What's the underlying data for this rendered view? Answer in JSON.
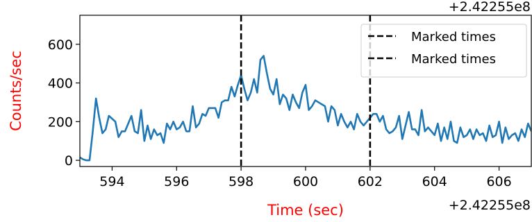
{
  "chart_data": {
    "type": "line",
    "xlabel": "Time (sec)",
    "ylabel": "Counts/sec",
    "x_offset_label": "+2.42255e8",
    "xlim": [
      593,
      607
    ],
    "ylim": [
      -32,
      750
    ],
    "xticks": [
      594,
      596,
      598,
      600,
      602,
      604,
      606
    ],
    "yticks": [
      0,
      200,
      400,
      600
    ],
    "legend": "upper right",
    "x": [
      593.0,
      593.1,
      593.2,
      593.3,
      593.4,
      593.5,
      593.6,
      593.7,
      593.8,
      593.9,
      594.0,
      594.1,
      594.2,
      594.3,
      594.4,
      594.5,
      594.6,
      594.7,
      594.8,
      594.9,
      595.0,
      595.1,
      595.2,
      595.3,
      595.4,
      595.5,
      595.6,
      595.7,
      595.8,
      595.9,
      596.0,
      596.1,
      596.2,
      596.3,
      596.4,
      596.5,
      596.6,
      596.7,
      596.8,
      596.9,
      597.0,
      597.1,
      597.2,
      597.3,
      597.4,
      597.5,
      597.6,
      597.7,
      597.8,
      597.9,
      598.0,
      598.1,
      598.2,
      598.3,
      598.4,
      598.5,
      598.6,
      598.7,
      598.8,
      598.9,
      599.0,
      599.1,
      599.2,
      599.3,
      599.4,
      599.5,
      599.6,
      599.7,
      599.8,
      599.9,
      600.0,
      600.1,
      600.2,
      600.3,
      600.4,
      600.5,
      600.6,
      600.7,
      600.8,
      600.9,
      601.0,
      601.1,
      601.2,
      601.3,
      601.4,
      601.5,
      601.6,
      601.7,
      601.8,
      601.9,
      602.0,
      602.1,
      602.2,
      602.3,
      602.4,
      602.5,
      602.6,
      602.7,
      602.8,
      602.9,
      603.0,
      603.1,
      603.2,
      603.3,
      603.4,
      603.5,
      603.6,
      603.7,
      603.8,
      603.9,
      604.0,
      604.1,
      604.2,
      604.3,
      604.4,
      604.5,
      604.6,
      604.7,
      604.8,
      604.9,
      605.0,
      605.1,
      605.2,
      605.3,
      605.4,
      605.5,
      605.6,
      605.7,
      605.8,
      605.9,
      606.0,
      606.1,
      606.2,
      606.3,
      606.4,
      606.5,
      606.6,
      606.7,
      606.8,
      606.9,
      607.0
    ],
    "series": [
      {
        "color": "#1f77b4",
        "values": [
          15,
          5,
          0,
          0,
          150,
          320,
          220,
          140,
          160,
          230,
          215,
          200,
          120,
          150,
          150,
          190,
          230,
          150,
          140,
          260,
          100,
          180,
          110,
          160,
          130,
          140,
          90,
          190,
          160,
          200,
          160,
          170,
          200,
          150,
          150,
          280,
          170,
          190,
          240,
          230,
          270,
          270,
          270,
          220,
          300,
          310,
          310,
          380,
          330,
          390,
          440,
          370,
          310,
          350,
          420,
          350,
          520,
          540,
          450,
          370,
          340,
          420,
          290,
          340,
          320,
          260,
          340,
          300,
          270,
          350,
          390,
          260,
          280,
          310,
          300,
          290,
          280,
          200,
          280,
          260,
          180,
          240,
          200,
          170,
          200,
          160,
          240,
          200,
          180,
          200,
          220,
          240,
          240,
          200,
          230,
          160,
          140,
          150,
          170,
          230,
          110,
          180,
          250,
          160,
          160,
          130,
          260,
          150,
          170,
          150,
          130,
          190,
          100,
          170,
          110,
          200,
          100,
          90,
          170,
          120,
          130,
          160,
          110,
          160,
          130,
          140,
          100,
          180,
          120,
          130,
          200,
          90,
          170,
          110,
          130,
          140,
          100,
          160,
          120,
          190,
          150
        ]
      }
    ],
    "vlines": [
      {
        "name": "Marked times",
        "x": 598,
        "color": "#000000"
      },
      {
        "name": "Marked times",
        "x": 602,
        "color": "#000000"
      }
    ]
  }
}
